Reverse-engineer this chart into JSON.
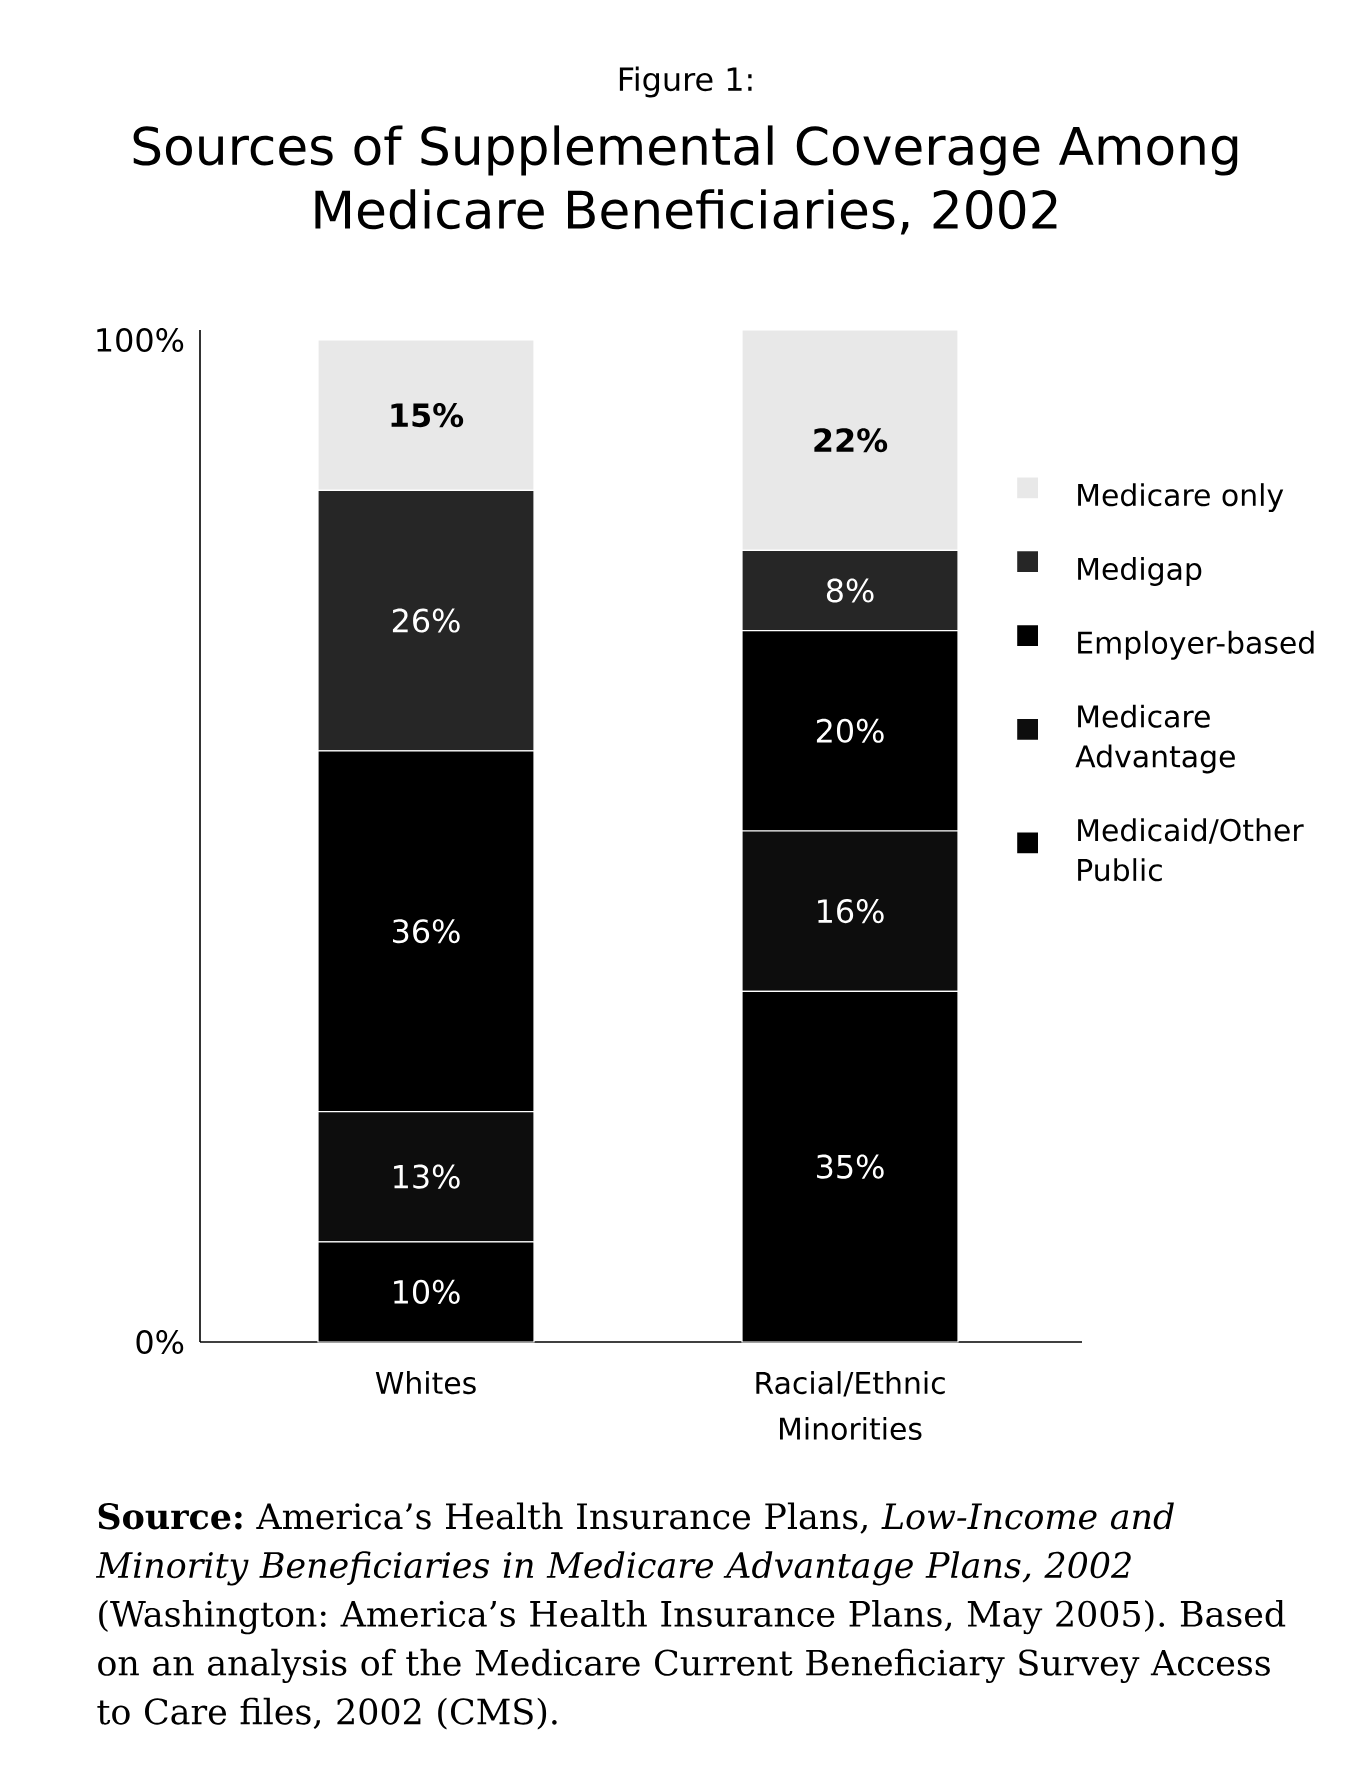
{
  "chart_data": {
    "type": "bar",
    "stacked": true,
    "title": "Sources of Supplemental Coverage Among Medicare Beneficiaries, 2002",
    "annotations": [
      "Figure 1:",
      "**Source:** America’s Health Insurance Plans, *Low-Income and Minority Beneficiaries in Medicare Advantage Plans, 2002* (Washington: America’s Health Insurance Plans, May 2005). Based on an analysis of the Medicare Current Beneficiary Survey Access to Care files, 2002 (CMS)."
    ],
    "categories": [
      "Whites",
      "Racial/Ethnic Minorities"
    ],
    "series": [
      {
        "name": "Medicaid/Other Public",
        "color": "#000000",
        "values": [
          10,
          35
        ],
        "value_labels": [
          "10%",
          "35%"
        ]
      },
      {
        "name": "Medicare Advantage",
        "color": "#0d0d0d",
        "values": [
          13,
          16
        ],
        "value_labels": [
          "13%",
          "16%"
        ]
      },
      {
        "name": "Employer-based",
        "color": "#000000",
        "values": [
          36,
          20
        ],
        "value_labels": [
          "36%",
          "20%"
        ]
      },
      {
        "name": "Medigap",
        "color": "#262626",
        "values": [
          26,
          8
        ],
        "value_labels": [
          "26%",
          "8%"
        ]
      },
      {
        "name": "Medicare only",
        "color": "#e8e8e8",
        "values": [
          15,
          22
        ],
        "value_labels": [
          "15%",
          "22%"
        ]
      }
    ],
    "ylim": [
      0,
      101
    ],
    "yticks": [
      {
        "value": 0,
        "label": "0%"
      },
      {
        "value": 100,
        "label": "100%"
      }
    ],
    "legend": "right"
  }
}
